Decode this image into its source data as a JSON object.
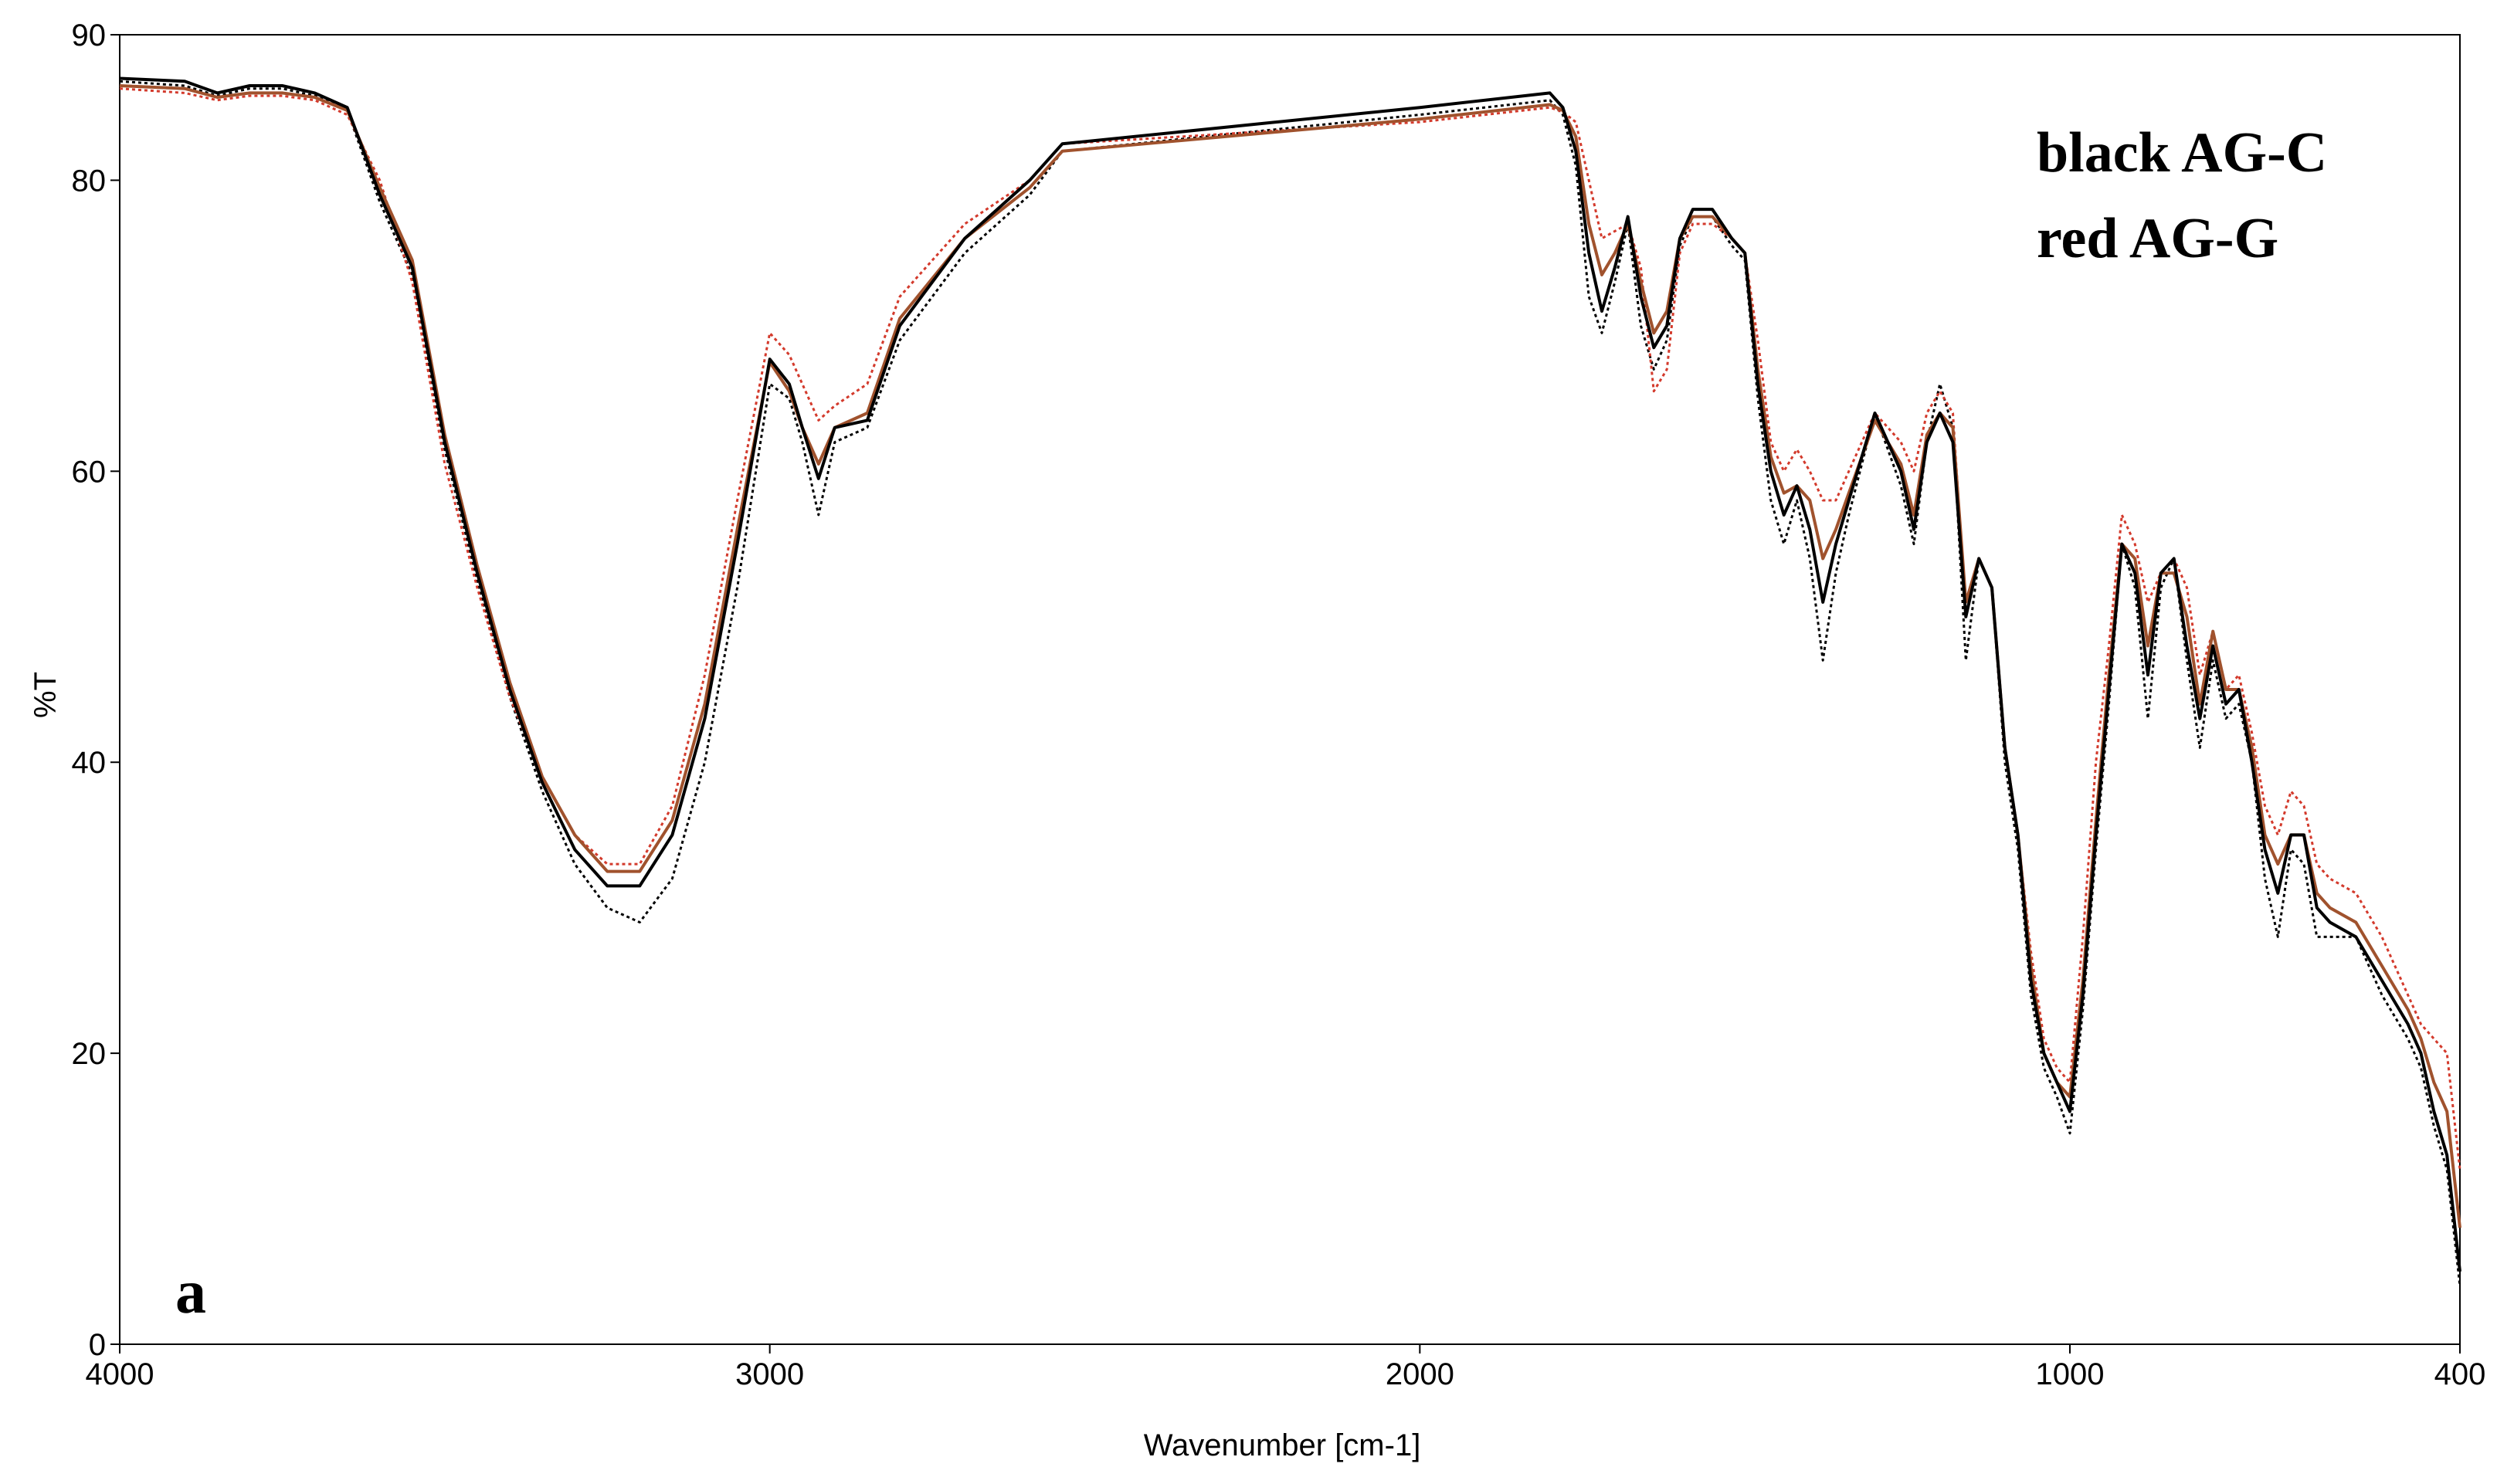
{
  "chart_data": {
    "type": "line",
    "xlabel": "Wavenumber [cm-1]",
    "ylabel": "%T",
    "annotations": [
      "black AG-C",
      "red AG-G",
      "a"
    ],
    "annotation_colors": [
      "#000000",
      "#8b1a1a",
      "#000000"
    ],
    "xlim": [
      4000,
      400
    ],
    "xticks": [
      4000,
      3000,
      2000,
      1000,
      400
    ],
    "ylim": [
      0,
      90
    ],
    "yticks": [
      0,
      20,
      40,
      60,
      80,
      90
    ],
    "grid": false,
    "x": [
      4000,
      3900,
      3850,
      3800,
      3750,
      3700,
      3650,
      3600,
      3550,
      3500,
      3450,
      3400,
      3350,
      3300,
      3250,
      3200,
      3150,
      3100,
      3050,
      3000,
      2970,
      2950,
      2925,
      2900,
      2850,
      2800,
      2700,
      2600,
      2550,
      2000,
      1800,
      1780,
      1760,
      1740,
      1720,
      1700,
      1680,
      1660,
      1640,
      1620,
      1600,
      1580,
      1550,
      1520,
      1500,
      1480,
      1460,
      1440,
      1420,
      1400,
      1380,
      1360,
      1340,
      1300,
      1260,
      1240,
      1220,
      1200,
      1180,
      1160,
      1140,
      1120,
      1100,
      1080,
      1060,
      1040,
      1020,
      1000,
      980,
      960,
      940,
      920,
      900,
      880,
      860,
      840,
      820,
      800,
      780,
      760,
      740,
      720,
      700,
      680,
      660,
      640,
      620,
      600,
      560,
      520,
      480,
      460,
      440,
      420,
      400
    ],
    "series": [
      {
        "color": "#000000",
        "style": "dotted",
        "values": [
          86.8,
          86.5,
          85.8,
          86.3,
          86.3,
          85.8,
          84.8,
          78.5,
          73.5,
          61.5,
          52.5,
          44.5,
          38,
          33,
          30,
          29,
          32,
          40,
          52,
          66,
          65,
          62,
          57,
          62,
          63,
          69,
          75,
          79,
          82,
          84.5,
          85.5,
          84.5,
          81,
          72,
          69.5,
          73,
          77,
          70,
          67,
          69,
          75.5,
          77.5,
          77.5,
          75.5,
          74.5,
          65,
          58,
          55,
          58,
          54,
          47,
          53,
          57,
          64,
          59,
          55,
          62,
          66,
          63,
          47,
          54,
          52,
          40,
          34,
          24,
          19,
          17,
          14.5,
          23,
          34,
          44,
          55,
          52,
          43,
          52,
          54,
          47,
          41,
          47,
          43,
          44,
          40,
          32,
          28,
          34,
          33,
          28,
          28,
          28,
          24,
          21,
          19,
          15,
          12,
          4
        ]
      },
      {
        "color": "#d33a2c",
        "style": "dotted",
        "values": [
          86.3,
          86,
          85.5,
          85.8,
          85.8,
          85.5,
          84.5,
          80,
          73,
          60.5,
          52,
          44.5,
          39,
          35,
          33,
          33,
          37,
          46,
          58,
          69.5,
          68,
          66,
          63.5,
          64.5,
          66,
          72,
          77,
          80,
          82.5,
          84,
          85,
          84.7,
          84,
          80,
          76,
          76.5,
          77,
          74,
          65.5,
          67,
          75,
          77,
          77,
          76,
          75,
          69,
          62,
          60,
          61.5,
          60,
          58,
          58,
          60,
          64,
          62,
          60,
          64,
          65.5,
          64,
          50,
          54,
          52,
          41,
          35,
          27,
          21,
          19,
          18,
          28,
          40,
          48,
          57,
          55,
          51,
          53,
          54,
          52,
          46,
          49,
          45,
          46,
          42,
          37,
          35,
          38,
          37,
          33,
          32,
          31,
          28,
          24,
          22,
          21,
          20,
          12
        ]
      },
      {
        "color": "#a0522d",
        "style": "solid",
        "values": [
          86.5,
          86.3,
          85.7,
          86,
          86,
          85.7,
          84.8,
          79.5,
          74.5,
          62.5,
          53.5,
          45.5,
          39,
          35,
          32.5,
          32.5,
          36,
          44,
          56,
          67.5,
          65.5,
          63,
          60.5,
          63,
          64,
          70.5,
          76,
          79.5,
          82,
          84.2,
          85.2,
          84.8,
          83,
          77,
          73.5,
          75,
          77,
          73,
          69.5,
          71,
          76,
          77.5,
          77.5,
          76,
          75,
          67,
          61,
          58.5,
          59,
          58,
          54,
          56,
          58.5,
          63.5,
          60.5,
          57,
          62.5,
          64,
          63,
          51,
          54,
          52,
          41,
          35,
          26,
          20,
          18,
          17,
          25,
          36,
          46,
          55,
          54,
          48,
          53,
          53,
          50,
          44,
          49,
          45,
          45,
          41,
          35,
          33,
          35,
          35,
          31,
          30,
          29,
          26,
          23,
          21,
          18,
          16,
          8
        ]
      },
      {
        "color": "#000000",
        "style": "solid",
        "values": [
          87,
          86.8,
          86,
          86.5,
          86.5,
          86,
          85,
          79,
          74,
          62,
          53,
          45,
          38.6,
          34,
          31.5,
          31.5,
          35,
          43,
          55,
          67.7,
          66,
          63,
          59.5,
          63,
          63.5,
          70,
          76,
          80,
          82.5,
          85,
          86,
          85,
          82,
          75,
          71,
          74,
          77.5,
          72,
          68.5,
          70,
          76,
          78,
          78,
          76,
          75,
          66,
          60,
          57,
          59,
          56,
          51,
          55,
          58,
          64,
          60,
          56,
          62,
          64,
          62,
          50,
          54,
          52,
          41,
          35,
          25,
          20,
          18,
          16,
          24,
          35,
          45,
          55,
          53,
          46,
          53,
          54,
          48,
          43,
          48,
          44,
          45,
          40,
          34,
          31,
          35,
          35,
          30,
          29,
          28,
          25,
          22,
          20,
          16,
          13,
          5
        ]
      }
    ]
  }
}
